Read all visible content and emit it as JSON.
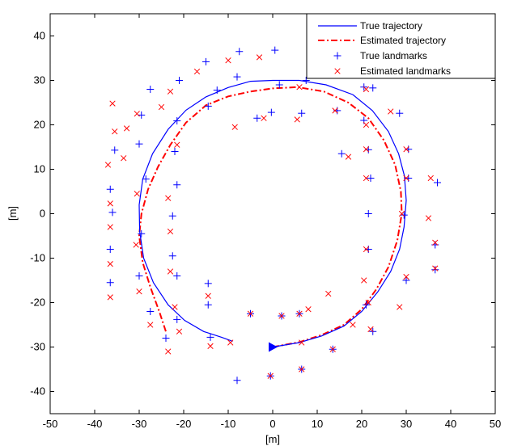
{
  "chart_data": {
    "type": "scatter",
    "title": "",
    "xlabel": "[m]",
    "ylabel": "[m]",
    "xlim": [
      -50,
      50
    ],
    "ylim": [
      -45,
      45
    ],
    "xticks": [
      -50,
      -40,
      -30,
      -20,
      -10,
      0,
      10,
      20,
      30,
      40,
      50
    ],
    "yticks": [
      -40,
      -30,
      -20,
      -10,
      0,
      10,
      20,
      30,
      40
    ],
    "grid": false,
    "legend_position": "top-right",
    "colors": {
      "true": "#0000ff",
      "estimated": "#ff0000"
    },
    "series": [
      {
        "name": "True  trajectory",
        "kind": "line",
        "color": "#0000ff",
        "points": [
          [
            0,
            -30
          ],
          [
            6,
            -29
          ],
          [
            11,
            -27.5
          ],
          [
            16,
            -25.3
          ],
          [
            20,
            -22
          ],
          [
            23.6,
            -17.6
          ],
          [
            26.5,
            -13
          ],
          [
            28.5,
            -8
          ],
          [
            29.5,
            -3
          ],
          [
            30,
            3
          ],
          [
            29.6,
            8.5
          ],
          [
            28.3,
            13.5
          ],
          [
            26,
            18.5
          ],
          [
            22.4,
            23.2
          ],
          [
            18,
            26.8
          ],
          [
            12,
            29
          ],
          [
            6,
            30
          ],
          [
            0,
            30
          ],
          [
            -5,
            29.8
          ],
          [
            -10,
            28.4
          ],
          [
            -15,
            26.3
          ],
          [
            -19.5,
            23.3
          ],
          [
            -23.5,
            19
          ],
          [
            -27,
            13.5
          ],
          [
            -29.2,
            7.8
          ],
          [
            -30,
            2
          ],
          [
            -29.9,
            -4
          ],
          [
            -29,
            -10
          ],
          [
            -26.8,
            -15.5
          ],
          [
            -23.5,
            -20.5
          ],
          [
            -19.8,
            -24
          ],
          [
            -15.5,
            -26.5
          ],
          [
            -11.5,
            -27.8
          ],
          [
            -9,
            -28.7
          ]
        ]
      },
      {
        "name": "Estimated trajectory",
        "kind": "line",
        "color": "#ff0000",
        "points": [
          [
            0,
            -30
          ],
          [
            6,
            -28.9
          ],
          [
            11,
            -27.3
          ],
          [
            16,
            -25
          ],
          [
            20,
            -21.5
          ],
          [
            23.3,
            -17
          ],
          [
            26,
            -12
          ],
          [
            28,
            -6
          ],
          [
            29,
            0
          ],
          [
            28.8,
            5
          ],
          [
            27.5,
            11
          ],
          [
            25,
            16.5
          ],
          [
            21.5,
            21.5
          ],
          [
            17,
            25
          ],
          [
            11.5,
            27.5
          ],
          [
            5.5,
            28.5
          ],
          [
            0,
            28.2
          ],
          [
            -5,
            27.5
          ],
          [
            -10,
            26.4
          ],
          [
            -15,
            24.4
          ],
          [
            -19.5,
            20.5
          ],
          [
            -23,
            15.5
          ],
          [
            -25.8,
            10.5
          ],
          [
            -28,
            5.5
          ],
          [
            -29.5,
            0
          ],
          [
            -30,
            -5
          ],
          [
            -29.2,
            -11
          ],
          [
            -27.5,
            -16.5
          ],
          [
            -25.5,
            -22
          ],
          [
            -24,
            -26.5
          ]
        ]
      },
      {
        "name": "True landmarks",
        "kind": "marker",
        "marker": "plus",
        "color": "#0000ff",
        "points": [
          [
            0.5,
            36.8
          ],
          [
            -7.5,
            36.5
          ],
          [
            -15,
            34.2
          ],
          [
            -21,
            30
          ],
          [
            -27.5,
            28
          ],
          [
            -35.5,
            14.3
          ],
          [
            -36.5,
            5.5
          ],
          [
            -36,
            0.3
          ],
          [
            -36.5,
            -8
          ],
          [
            -36.5,
            -15.5
          ],
          [
            -29.5,
            22.2
          ],
          [
            -30,
            15.7
          ],
          [
            -28.5,
            7.8
          ],
          [
            -29.5,
            -4.5
          ],
          [
            -30,
            -14
          ],
          [
            -27.5,
            -22
          ],
          [
            -24,
            -28
          ],
          [
            -21.5,
            20.9
          ],
          [
            -22,
            14
          ],
          [
            -21.5,
            6.5
          ],
          [
            -22.5,
            -0.5
          ],
          [
            -22.5,
            -9.5
          ],
          [
            -21.5,
            -14
          ],
          [
            -21.5,
            -23.8
          ],
          [
            -14.5,
            -15.7
          ],
          [
            -14.5,
            -20.5
          ],
          [
            -14,
            -27.8
          ],
          [
            -12.5,
            27.8
          ],
          [
            -14.5,
            24.2
          ],
          [
            -8,
            30.8
          ],
          [
            -3.5,
            21.5
          ],
          [
            -0.3,
            22.8
          ],
          [
            1.5,
            29
          ],
          [
            6.5,
            22.6
          ],
          [
            7.5,
            30
          ],
          [
            15.5,
            13.5
          ],
          [
            14.5,
            23.2
          ],
          [
            20.5,
            28.5
          ],
          [
            20.5,
            21
          ],
          [
            22.5,
            28.3
          ],
          [
            28.5,
            22.6
          ],
          [
            21.5,
            14.4
          ],
          [
            30.5,
            14.5
          ],
          [
            22,
            8
          ],
          [
            30.5,
            8
          ],
          [
            21.5,
            0
          ],
          [
            29.5,
            -0.3
          ],
          [
            37,
            7
          ],
          [
            36.5,
            -7
          ],
          [
            36.5,
            -12.6
          ],
          [
            21.5,
            -8
          ],
          [
            30,
            -15
          ],
          [
            21,
            -20.5
          ],
          [
            22.5,
            -26.5
          ],
          [
            -8,
            -37.5
          ],
          [
            -0.5,
            -36.5
          ],
          [
            6.5,
            -35
          ],
          [
            13.5,
            -30.5
          ],
          [
            6,
            -22.5
          ],
          [
            2,
            -23
          ],
          [
            -5,
            -22.5
          ]
        ]
      },
      {
        "name": "Estimated landmarks",
        "kind": "marker",
        "marker": "cross",
        "color": "#ff0000",
        "points": [
          [
            -3,
            35.2
          ],
          [
            -10,
            34.5
          ],
          [
            -17,
            32
          ],
          [
            -23,
            27.5
          ],
          [
            -25,
            24
          ],
          [
            -30.5,
            22.5
          ],
          [
            -36,
            24.8
          ],
          [
            -35.5,
            18.5
          ],
          [
            -32.8,
            19.2
          ],
          [
            -33.5,
            12.5
          ],
          [
            -37,
            11
          ],
          [
            -30.5,
            4.5
          ],
          [
            -36.5,
            2.3
          ],
          [
            -36.5,
            -3
          ],
          [
            -30.7,
            -7
          ],
          [
            -36.5,
            -11.3
          ],
          [
            -30,
            -17.5
          ],
          [
            -36.5,
            -18.8
          ],
          [
            -27.5,
            -25
          ],
          [
            -23.5,
            -31
          ],
          [
            -23.5,
            3.5
          ],
          [
            -21.5,
            15.5
          ],
          [
            -23,
            -4
          ],
          [
            -23,
            -13
          ],
          [
            -22,
            -21
          ],
          [
            -21,
            -26.5
          ],
          [
            -14.5,
            -18.5
          ],
          [
            -14,
            -29.8
          ],
          [
            -9.5,
            -29
          ],
          [
            -8.5,
            19.5
          ],
          [
            -2,
            21.5
          ],
          [
            -5,
            -22.5
          ],
          [
            2,
            -23
          ],
          [
            6,
            -22.5
          ],
          [
            8,
            -21.5
          ],
          [
            6.5,
            -29
          ],
          [
            12.5,
            -18
          ],
          [
            18,
            -25
          ],
          [
            13.5,
            -30.5
          ],
          [
            6.5,
            -35
          ],
          [
            -0.5,
            -36.5
          ],
          [
            5.5,
            21.2
          ],
          [
            6,
            28.5
          ],
          [
            14,
            23.2
          ],
          [
            17,
            12.8
          ],
          [
            21,
            28
          ],
          [
            26.5,
            23
          ],
          [
            21,
            20
          ],
          [
            21,
            14.5
          ],
          [
            30,
            14.5
          ],
          [
            21,
            8
          ],
          [
            30,
            8
          ],
          [
            29,
            0
          ],
          [
            21,
            -8
          ],
          [
            21.5,
            -20
          ],
          [
            28.5,
            -21
          ],
          [
            22,
            -26
          ],
          [
            20.5,
            -15
          ],
          [
            30,
            -14.2
          ],
          [
            35.5,
            8
          ],
          [
            35,
            -1
          ],
          [
            36.5,
            -6.5
          ],
          [
            36.5,
            -12.3
          ]
        ]
      }
    ]
  }
}
